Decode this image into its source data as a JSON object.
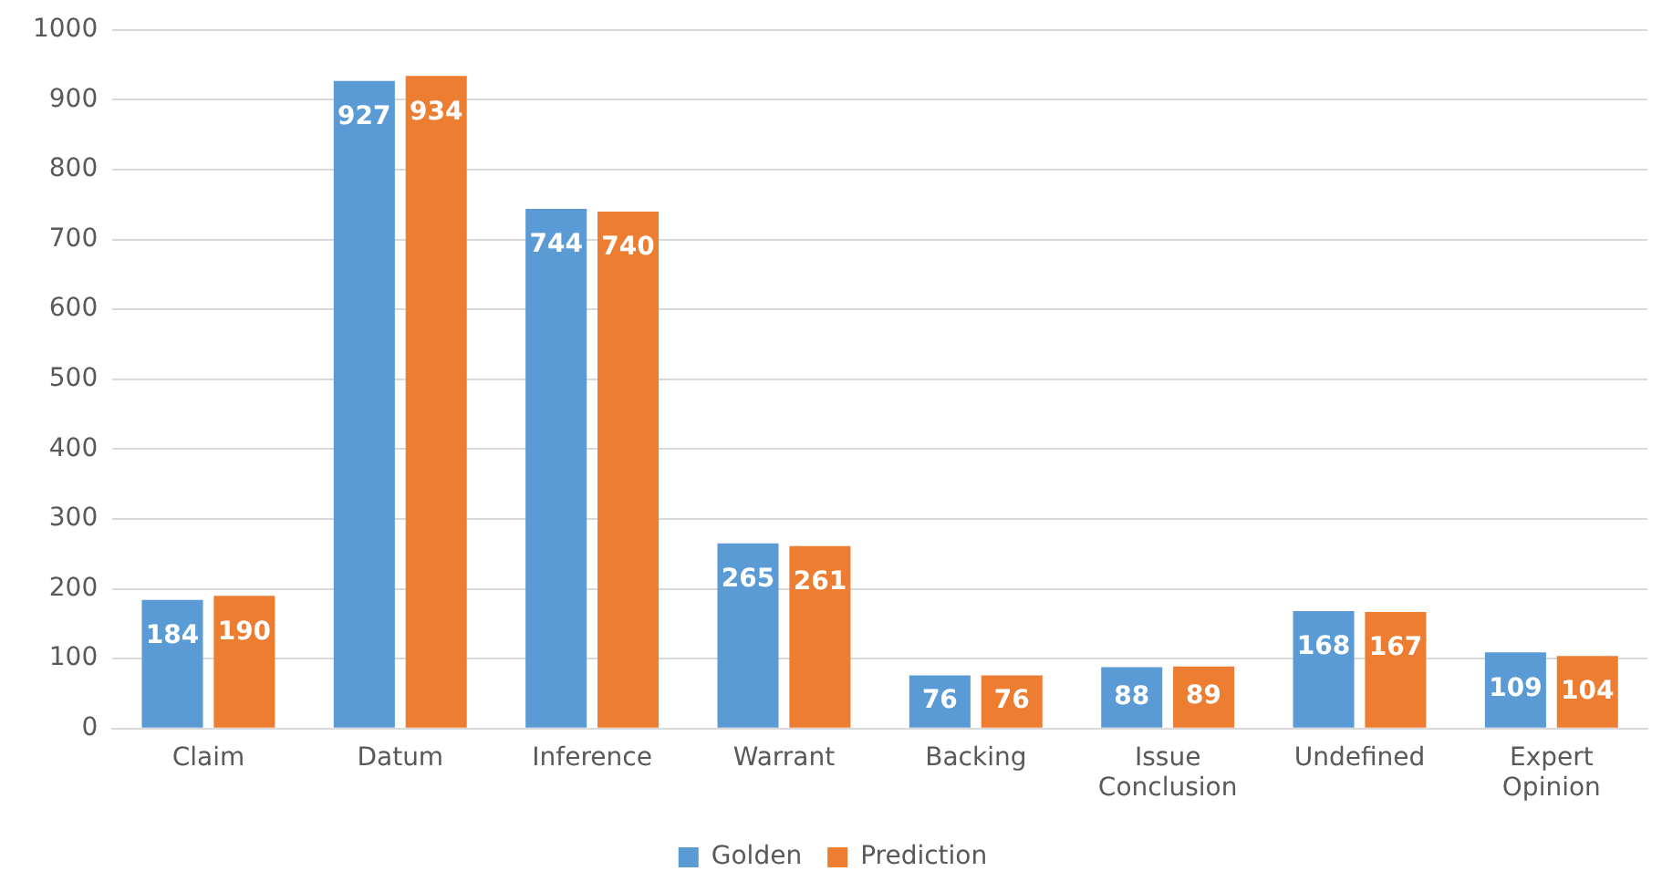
{
  "chart_data": {
    "type": "bar",
    "categories": [
      "Claim",
      "Datum",
      "Inference",
      "Warrant",
      "Backing",
      "Issue Conclusion",
      "Undefined",
      "Expert Opinion"
    ],
    "series": [
      {
        "name": "Golden",
        "color": "#5b9bd5",
        "values": [
          184,
          927,
          744,
          265,
          76,
          88,
          168,
          109
        ]
      },
      {
        "name": "Prediction",
        "color": "#ed7d31",
        "values": [
          190,
          934,
          740,
          261,
          76,
          89,
          167,
          104
        ]
      }
    ],
    "ylim": [
      0,
      1000
    ],
    "yticks": [
      0,
      100,
      200,
      300,
      400,
      500,
      600,
      700,
      800,
      900,
      1000
    ],
    "grid": "y",
    "legend": "bottom",
    "data_labels": true
  }
}
